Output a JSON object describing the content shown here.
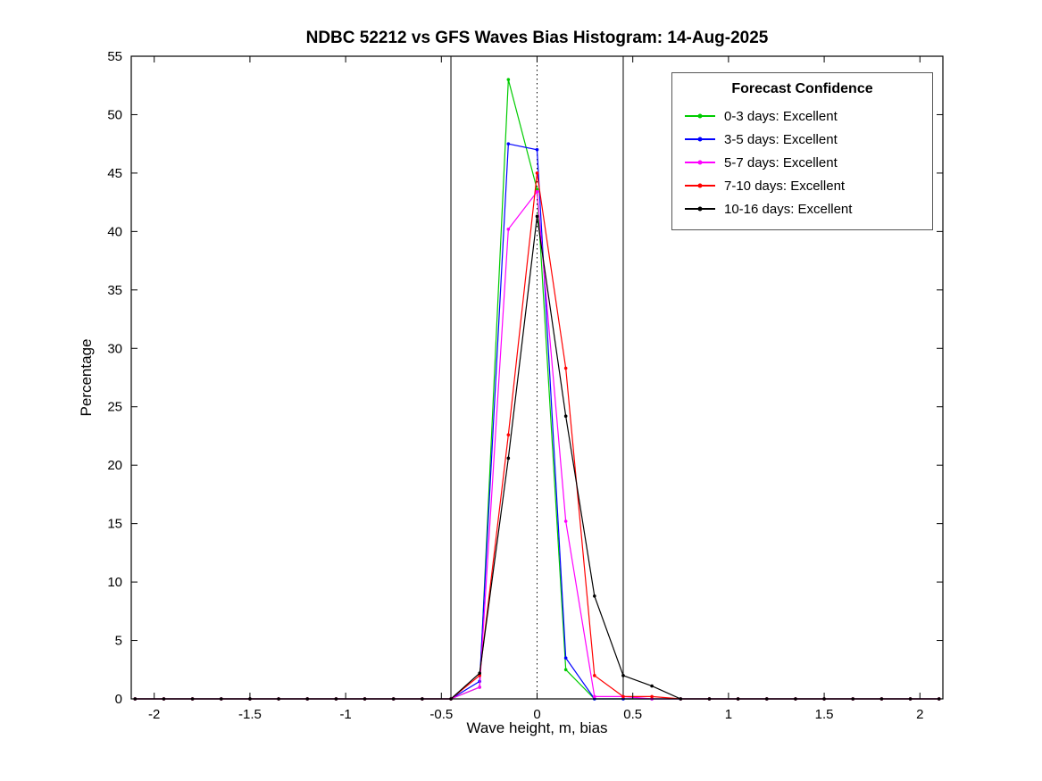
{
  "chart_data": {
    "type": "line",
    "title": "NDBC 52212 vs GFS Waves Bias Histogram: 14-Aug-2025",
    "xlabel": "Wave height, m, bias",
    "ylabel": "Percentage",
    "xlim": [
      -2.12,
      2.12
    ],
    "ylim": [
      0,
      55
    ],
    "xticks": [
      -2,
      -1.5,
      -1,
      -0.5,
      0,
      0.5,
      1,
      1.5,
      2
    ],
    "yticks": [
      0,
      5,
      10,
      15,
      20,
      25,
      30,
      35,
      40,
      45,
      50,
      55
    ],
    "grid": false,
    "legend": {
      "title": "Forecast Confidence",
      "position": "top-right"
    },
    "reference_lines": {
      "solid_vertical": [
        -0.45,
        0.45
      ],
      "dotted_vertical": [
        0
      ]
    },
    "x": [
      -2.1,
      -1.95,
      -1.8,
      -1.65,
      -1.5,
      -1.35,
      -1.2,
      -1.05,
      -0.9,
      -0.75,
      -0.6,
      -0.45,
      -0.3,
      -0.15,
      0,
      0.15,
      0.3,
      0.45,
      0.6,
      0.75,
      0.9,
      1.05,
      1.2,
      1.35,
      1.5,
      1.65,
      1.8,
      1.95,
      2.1
    ],
    "series": [
      {
        "name": "0-3 days: Excellent",
        "color": "#00cc00",
        "values": [
          0,
          0,
          0,
          0,
          0,
          0,
          0,
          0,
          0,
          0,
          0,
          0,
          1.0,
          53.0,
          43.6,
          2.5,
          0,
          0,
          0,
          0,
          0,
          0,
          0,
          0,
          0,
          0,
          0,
          0,
          0
        ]
      },
      {
        "name": "3-5 days: Excellent",
        "color": "#0000ff",
        "values": [
          0,
          0,
          0,
          0,
          0,
          0,
          0,
          0,
          0,
          0,
          0,
          0,
          1.5,
          47.5,
          47.0,
          3.5,
          0,
          0,
          0,
          0,
          0,
          0,
          0,
          0,
          0,
          0,
          0,
          0,
          0
        ]
      },
      {
        "name": "5-7 days: Excellent",
        "color": "#ff00ff",
        "values": [
          0,
          0,
          0,
          0,
          0,
          0,
          0,
          0,
          0,
          0,
          0,
          0,
          1.0,
          40.2,
          43.4,
          15.2,
          0.2,
          0.2,
          0,
          0,
          0,
          0,
          0,
          0,
          0,
          0,
          0,
          0,
          0
        ]
      },
      {
        "name": "7-10 days: Excellent",
        "color": "#ff0000",
        "values": [
          0,
          0,
          0,
          0,
          0,
          0,
          0,
          0,
          0,
          0,
          0,
          0,
          2.0,
          22.6,
          45.0,
          28.3,
          2.0,
          0.2,
          0.2,
          0,
          0,
          0,
          0,
          0,
          0,
          0,
          0,
          0,
          0
        ]
      },
      {
        "name": "10-16 days: Excellent",
        "color": "#000000",
        "values": [
          0,
          0,
          0,
          0,
          0,
          0,
          0,
          0,
          0,
          0,
          0,
          0,
          2.2,
          20.6,
          41.3,
          24.2,
          8.8,
          2.0,
          1.1,
          0,
          0,
          0,
          0,
          0,
          0,
          0,
          0,
          0,
          0
        ]
      }
    ]
  }
}
